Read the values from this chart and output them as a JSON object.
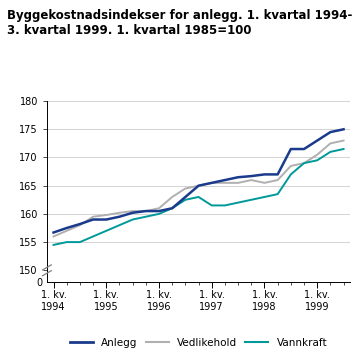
{
  "title_line1": "Byggekostnadsindekser for anlegg. 1. kvartal 1994-",
  "title_line2": "3. kvartal 1999. 1. kvartal 1985=100",
  "title_fontsize": 8.5,
  "background_color": "#ffffff",
  "grid_color": "#cccccc",
  "line_colors": {
    "Anlegg": "#1a3a8c",
    "Vedlikehold": "#b0b0b0",
    "Vannkraft": "#009999"
  },
  "xtick_labels": [
    "1. kv.\n1994",
    "1. kv.\n1995",
    "1. kv.\n1996",
    "1. kv.\n1997",
    "1. kv.\n1998",
    "1. kv.\n1999"
  ],
  "num_quarters": 23,
  "anlegg": [
    156.7,
    157.5,
    158.2,
    159.0,
    159.0,
    159.5,
    160.2,
    160.5,
    160.5,
    161.0,
    163.0,
    165.0,
    165.5,
    166.0,
    166.5,
    166.7,
    167.0,
    167.0,
    171.5,
    171.5,
    173.0,
    174.5,
    175.0
  ],
  "vedlikehold": [
    156.0,
    157.0,
    158.0,
    159.5,
    159.8,
    160.2,
    160.5,
    160.5,
    161.0,
    163.0,
    164.5,
    165.0,
    165.5,
    165.5,
    165.5,
    166.0,
    165.5,
    166.0,
    168.5,
    169.0,
    170.5,
    172.5,
    173.0
  ],
  "vannkraft": [
    154.5,
    155.0,
    155.0,
    156.0,
    157.0,
    158.0,
    159.0,
    159.5,
    160.0,
    161.0,
    162.5,
    163.0,
    161.5,
    161.5,
    162.0,
    162.5,
    163.0,
    163.5,
    167.0,
    169.0,
    169.5,
    171.0,
    171.5
  ],
  "ylim_main": [
    150,
    180
  ],
  "yticks_main": [
    150,
    155,
    160,
    165,
    170,
    175,
    180
  ],
  "ylim_zero": [
    0,
    1
  ],
  "xtick_positions": [
    0,
    4,
    8,
    12,
    16,
    20
  ]
}
